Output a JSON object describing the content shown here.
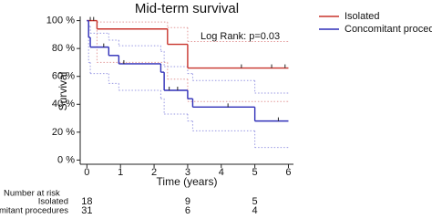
{
  "chart_data": {
    "type": "kaplan-meier",
    "title": "Mid-term survival",
    "x_label": "Time (years)",
    "y_label": "Survival",
    "annotation": "Log Rank: p=0.03",
    "xlim": [
      -0.2,
      6.15
    ],
    "ylim": [
      -3,
      103
    ],
    "xticks": [
      0,
      1,
      2,
      3,
      4,
      5,
      6
    ],
    "yticks": [
      {
        "value": 0,
        "label": "0 %"
      },
      {
        "value": 20,
        "label": "20 %"
      },
      {
        "value": 40,
        "label": "40 %"
      },
      {
        "value": 60,
        "label": "60 %"
      },
      {
        "value": 80,
        "label": "80 %"
      },
      {
        "value": 100,
        "label": "100 %"
      }
    ],
    "series": [
      {
        "name": "Isolated",
        "color": "#c8332b",
        "x": [
          0,
          0.3,
          2.4,
          3.0,
          6
        ],
        "values": [
          100,
          94,
          83,
          66,
          66
        ],
        "censored_x": [
          0.1,
          0.2,
          4.6,
          5.5,
          5.9
        ]
      },
      {
        "name": "Concomitant procedures",
        "color": "#2f2fb8",
        "x": [
          0,
          0.05,
          0.1,
          0.65,
          0.95,
          2.2,
          2.3,
          3.0,
          3.15,
          5.0,
          6
        ],
        "values": [
          100,
          88,
          81,
          75,
          69,
          63,
          50,
          44,
          38,
          28,
          28
        ],
        "censored_x": [
          0.5,
          1.1,
          2.45,
          2.7,
          4.2,
          5.7
        ]
      }
    ],
    "bands": [
      {
        "color": "#e39a9a",
        "x": [
          0,
          0.3,
          2.4,
          3.0,
          6
        ],
        "upper": [
          100,
          99,
          95,
          85,
          85
        ],
        "lower": [
          100,
          70,
          58,
          42,
          42
        ]
      },
      {
        "color": "#9a9ae3",
        "x": [
          0,
          0.05,
          0.1,
          0.65,
          0.95,
          2.2,
          2.3,
          3.0,
          3.15,
          5.0,
          6
        ],
        "upper": [
          100,
          96,
          91,
          86,
          82,
          78,
          67,
          62,
          57,
          48,
          48
        ],
        "lower": [
          100,
          70,
          62,
          55,
          50,
          44,
          33,
          28,
          21,
          9,
          9
        ]
      }
    ],
    "risk_table": {
      "title": "Number at risk",
      "times": [
        0,
        3,
        5
      ],
      "rows": [
        {
          "label": "Isolated",
          "values": [
            18,
            9,
            5
          ]
        },
        {
          "label": "Concomitant procedures",
          "values": [
            31,
            6,
            4
          ]
        }
      ]
    }
  }
}
